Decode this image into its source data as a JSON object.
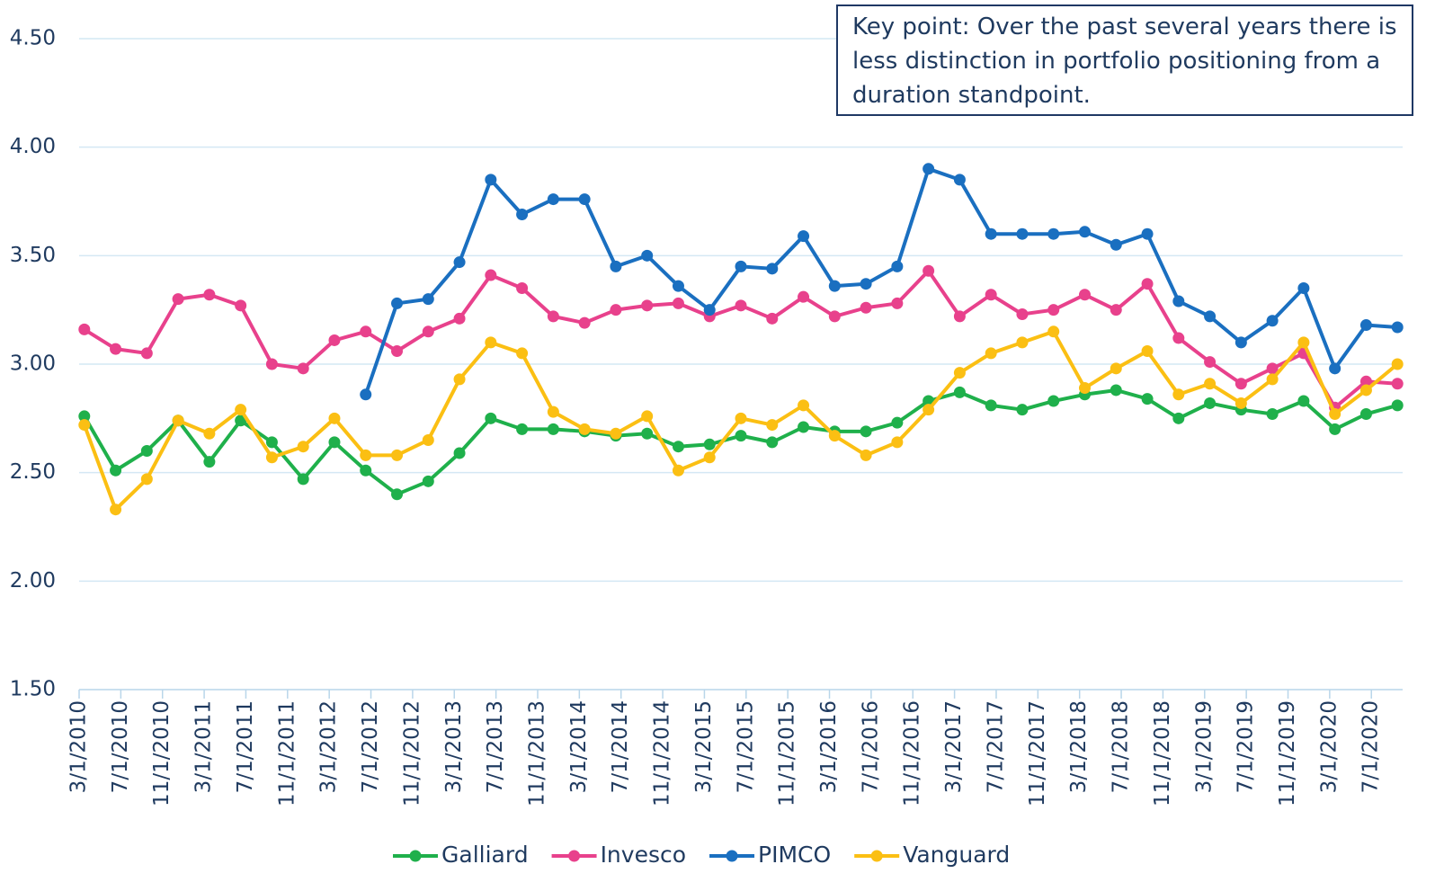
{
  "chart_data": {
    "type": "line",
    "annotation": "Key point: Over the past several years there is less distinction in portfolio positioning from a duration standpoint.",
    "x": [
      "2010-03",
      "2010-06",
      "2010-09",
      "2010-12",
      "2011-03",
      "2011-06",
      "2011-09",
      "2011-12",
      "2012-03",
      "2012-06",
      "2012-09",
      "2012-12",
      "2013-03",
      "2013-06",
      "2013-09",
      "2013-12",
      "2014-03",
      "2014-06",
      "2014-09",
      "2014-12",
      "2015-03",
      "2015-06",
      "2015-09",
      "2015-12",
      "2016-03",
      "2016-06",
      "2016-09",
      "2016-12",
      "2017-03",
      "2017-06",
      "2017-09",
      "2017-12",
      "2018-03",
      "2018-06",
      "2018-09",
      "2018-12",
      "2019-03",
      "2019-06",
      "2019-09",
      "2019-12",
      "2020-03",
      "2020-06",
      "2020-09"
    ],
    "series": [
      {
        "name": "Galliard",
        "color": "#1fb04b",
        "values": [
          2.76,
          2.51,
          2.6,
          2.74,
          2.55,
          2.74,
          2.64,
          2.47,
          2.64,
          2.51,
          2.4,
          2.46,
          2.59,
          2.75,
          2.7,
          2.7,
          2.69,
          2.67,
          2.68,
          2.62,
          2.63,
          2.67,
          2.64,
          2.71,
          2.69,
          2.69,
          2.73,
          2.83,
          2.87,
          2.81,
          2.79,
          2.83,
          2.86,
          2.88,
          2.84,
          2.75,
          2.82,
          2.79,
          2.77,
          2.83,
          2.7,
          2.77,
          2.81
        ]
      },
      {
        "name": "Invesco",
        "color": "#e8418c",
        "values": [
          3.16,
          3.07,
          3.05,
          3.3,
          3.32,
          3.27,
          3.0,
          2.98,
          3.11,
          3.15,
          3.06,
          3.15,
          3.21,
          3.41,
          3.35,
          3.22,
          3.19,
          3.25,
          3.27,
          3.28,
          3.22,
          3.27,
          3.21,
          3.31,
          3.22,
          3.26,
          3.28,
          3.43,
          3.22,
          3.32,
          3.23,
          3.25,
          3.32,
          3.25,
          3.37,
          3.12,
          3.01,
          2.91,
          2.98,
          3.05,
          2.8,
          2.92,
          2.91
        ]
      },
      {
        "name": "PIMCO",
        "color": "#1a6fc0",
        "values": [
          null,
          null,
          null,
          null,
          null,
          null,
          null,
          null,
          null,
          2.86,
          3.28,
          3.3,
          3.47,
          3.85,
          3.69,
          3.76,
          3.76,
          3.45,
          3.5,
          3.36,
          3.25,
          3.45,
          3.44,
          3.59,
          3.36,
          3.37,
          3.45,
          3.9,
          3.85,
          3.6,
          3.6,
          3.6,
          3.61,
          3.55,
          3.6,
          3.29,
          3.22,
          3.1,
          3.2,
          3.35,
          2.98,
          3.18,
          3.17
        ]
      },
      {
        "name": "Vanguard",
        "color": "#fbbf13",
        "values": [
          2.72,
          2.33,
          2.47,
          2.74,
          2.68,
          2.79,
          2.57,
          2.62,
          2.75,
          2.58,
          2.58,
          2.65,
          2.93,
          3.1,
          3.05,
          2.78,
          2.7,
          2.68,
          2.76,
          2.51,
          2.57,
          2.75,
          2.72,
          2.81,
          2.67,
          2.58,
          2.64,
          2.79,
          2.96,
          3.05,
          3.1,
          3.15,
          2.89,
          2.98,
          3.06,
          2.86,
          2.91,
          2.82,
          2.93,
          3.1,
          2.77,
          2.88,
          3.0
        ]
      }
    ],
    "xlim": [
      "2010-03-01",
      "2020-10-01"
    ],
    "xticks": [
      {
        "value": "2010-03-01",
        "label": "3/1/2010"
      },
      {
        "value": "2010-07-01",
        "label": "7/1/2010"
      },
      {
        "value": "2010-11-01",
        "label": "11/1/2010"
      },
      {
        "value": "2011-03-01",
        "label": "3/1/2011"
      },
      {
        "value": "2011-07-01",
        "label": "7/1/2011"
      },
      {
        "value": "2011-11-01",
        "label": "11/1/2011"
      },
      {
        "value": "2012-03-01",
        "label": "3/1/2012"
      },
      {
        "value": "2012-07-01",
        "label": "7/1/2012"
      },
      {
        "value": "2012-11-01",
        "label": "11/1/2012"
      },
      {
        "value": "2013-03-01",
        "label": "3/1/2013"
      },
      {
        "value": "2013-07-01",
        "label": "7/1/2013"
      },
      {
        "value": "2013-11-01",
        "label": "11/1/2013"
      },
      {
        "value": "2014-03-01",
        "label": "3/1/2014"
      },
      {
        "value": "2014-07-01",
        "label": "7/1/2014"
      },
      {
        "value": "2014-11-01",
        "label": "11/1/2014"
      },
      {
        "value": "2015-03-01",
        "label": "3/1/2015"
      },
      {
        "value": "2015-07-01",
        "label": "7/1/2015"
      },
      {
        "value": "2015-11-01",
        "label": "11/1/2015"
      },
      {
        "value": "2016-03-01",
        "label": "3/1/2016"
      },
      {
        "value": "2016-07-01",
        "label": "7/1/2016"
      },
      {
        "value": "2016-11-01",
        "label": "11/1/2016"
      },
      {
        "value": "2017-03-01",
        "label": "3/1/2017"
      },
      {
        "value": "2017-07-01",
        "label": "7/1/2017"
      },
      {
        "value": "2017-11-01",
        "label": "11/1/2017"
      },
      {
        "value": "2018-03-01",
        "label": "3/1/2018"
      },
      {
        "value": "2018-07-01",
        "label": "7/1/2018"
      },
      {
        "value": "2018-11-01",
        "label": "11/1/2018"
      },
      {
        "value": "2019-03-01",
        "label": "3/1/2019"
      },
      {
        "value": "2019-07-01",
        "label": "7/1/2019"
      },
      {
        "value": "2019-11-01",
        "label": "11/1/2019"
      },
      {
        "value": "2020-03-01",
        "label": "3/1/2020"
      },
      {
        "value": "2020-07-01",
        "label": "7/1/2020"
      }
    ],
    "ylim": [
      1.5,
      4.5
    ],
    "yticks": [
      {
        "value": 1.5,
        "label": "1.50"
      },
      {
        "value": 2,
        "label": "2.00"
      },
      {
        "value": 2.5,
        "label": "2.50"
      },
      {
        "value": 3,
        "label": "3.00"
      },
      {
        "value": 3.5,
        "label": "3.50"
      },
      {
        "value": 4,
        "label": "4.00"
      },
      {
        "value": 4.5,
        "label": "4.50"
      }
    ],
    "grid": true,
    "legend": "bottom"
  }
}
